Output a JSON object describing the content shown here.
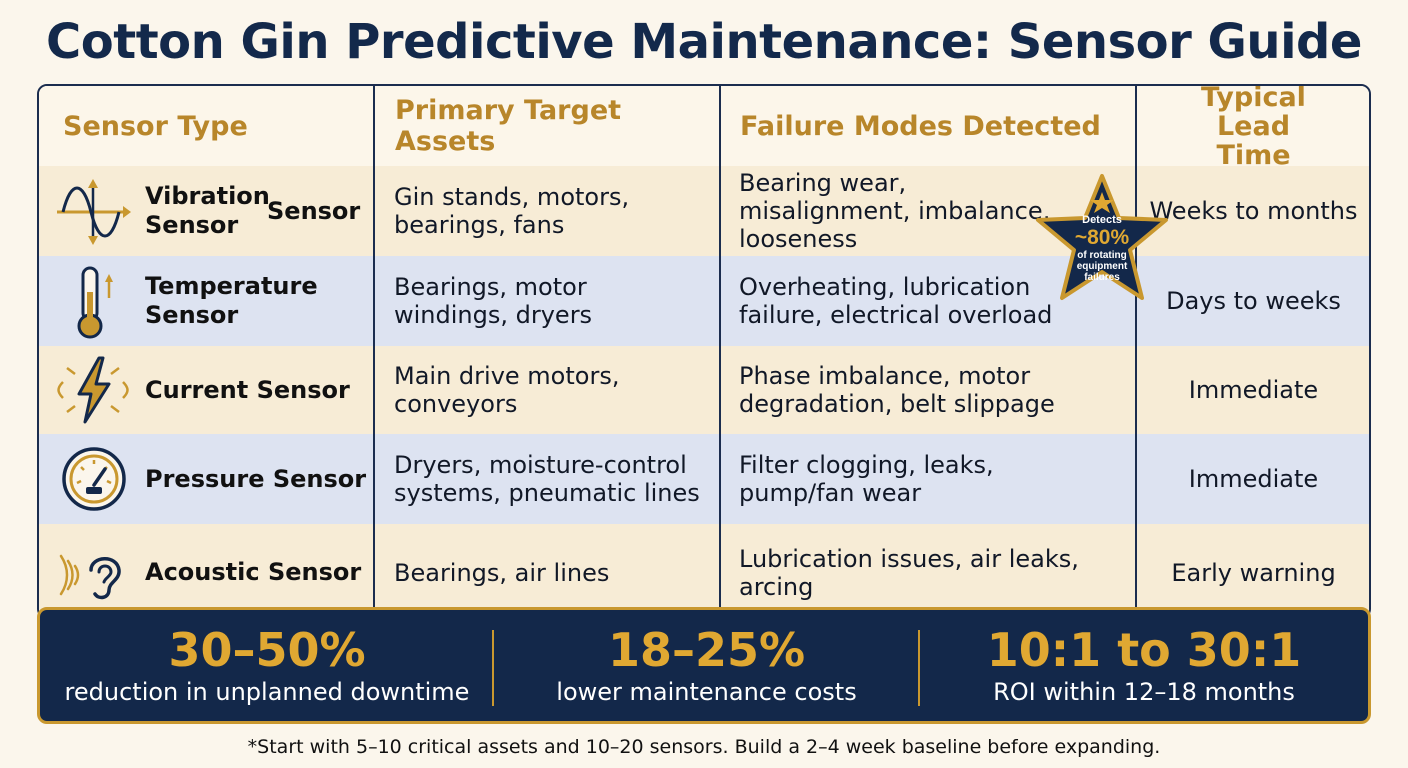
{
  "title": "Cotton Gin Predictive Maintenance: Sensor Guide",
  "table": {
    "headers": {
      "sensor_type": "Sensor Type",
      "assets": "Primary Target Assets",
      "failures": "Failure Modes Detected",
      "lead_time": "Typical Lead Time"
    },
    "rows": [
      {
        "icon": "vibration-wave-icon",
        "name": "Vibration Sensor",
        "extra": "Sensor",
        "assets": "Gin stands, motors, bearings, fans",
        "failures": "Bearing wear, misalignment, imbalance, looseness",
        "lead_time": "Weeks to months"
      },
      {
        "icon": "thermometer-icon",
        "name": "Temperature Sensor",
        "assets": "Bearings, motor windings, dryers",
        "failures": "Overheating, lubrication failure, electrical overload",
        "lead_time": "Days to weeks"
      },
      {
        "icon": "lightning-bolt-icon",
        "name": "Current Sensor",
        "assets": "Main drive motors, conveyors",
        "failures": "Phase imbalance, motor degradation, belt slippage",
        "lead_time": "Immediate"
      },
      {
        "icon": "pressure-gauge-icon",
        "name": "Pressure Sensor",
        "assets": "Dryers, moisture-control systems, pneumatic lines",
        "failures": "Filter clogging, leaks, pump/fan wear",
        "lead_time": "Immediate"
      },
      {
        "icon": "ear-sound-icon",
        "name": "Acoustic Sensor",
        "assets": "Bearings, air lines",
        "failures": "Lubrication issues, air leaks, arcing",
        "lead_time": "Early warning"
      }
    ]
  },
  "badge": {
    "line1": "Detects",
    "value": "~80%",
    "line2": "of rotating equipment failures"
  },
  "stats": [
    {
      "value": "30–50%",
      "label": "reduction in unplanned downtime"
    },
    {
      "value": "18–25%",
      "label": "lower maintenance costs"
    },
    {
      "value": "10:1 to 30:1",
      "label": "ROI within 12–18 months"
    }
  ],
  "footnote": "*Start with 5–10 critical assets and 10–20 sensors. Build a 2–4 week baseline before expanding.",
  "colors": {
    "navy": "#13284a",
    "gold": "#c9982f",
    "header_text": "#b8862a",
    "row_beige": "#f7ecd6",
    "row_blue": "#dde3f1"
  }
}
